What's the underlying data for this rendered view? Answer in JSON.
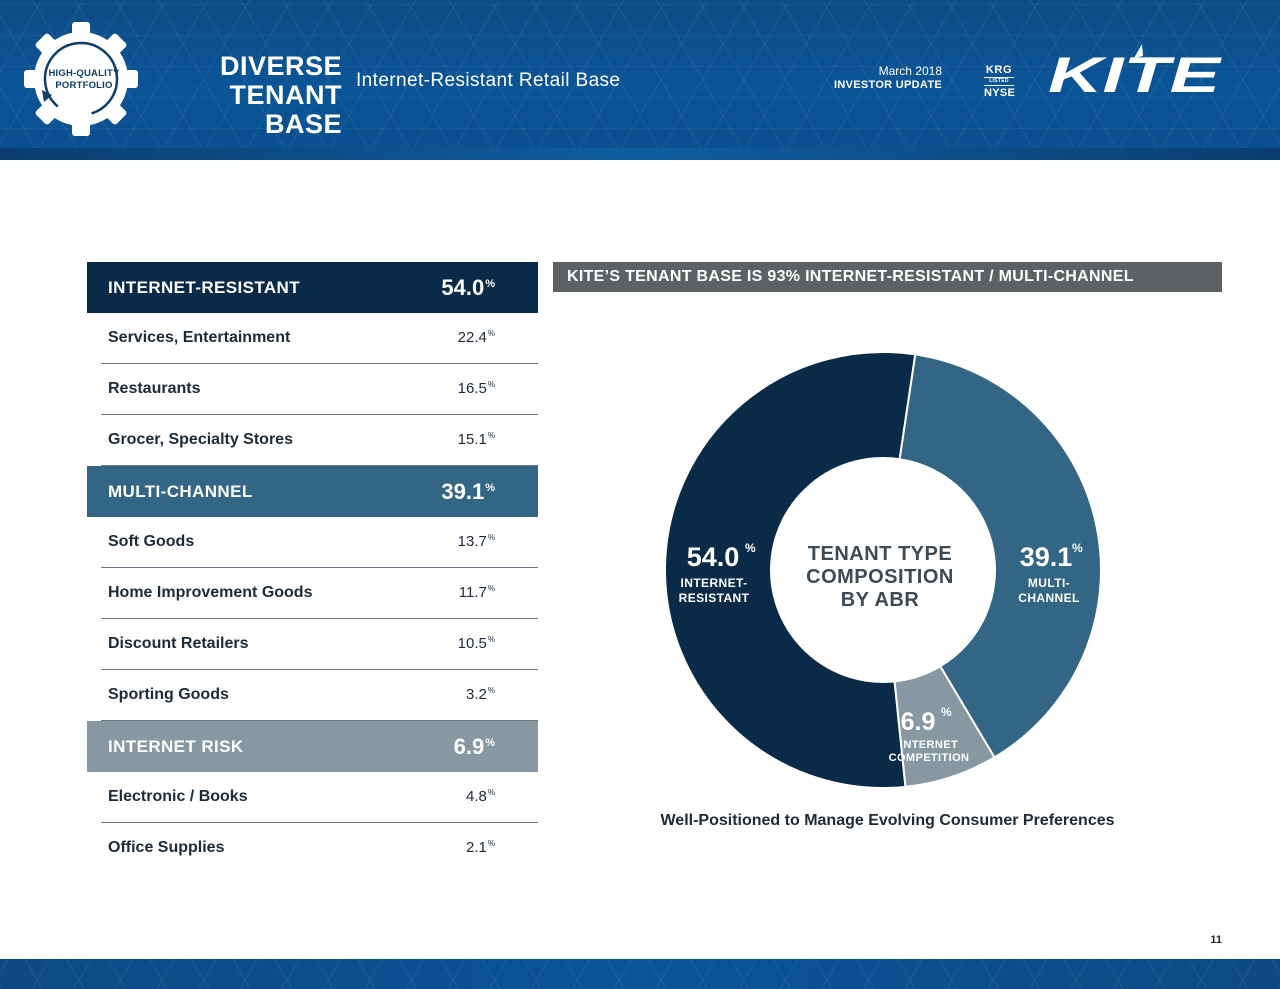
{
  "colors": {
    "internet_resistant": "#0a2b47",
    "multi_channel": "#336584",
    "internet_risk": "#8798a3",
    "banner": "#5c6163",
    "header_blue": "#0a5497"
  },
  "header": {
    "badge_line1": "HIGH-QUALITY",
    "badge_line2": "PORTFOLIO",
    "title_line1": "DIVERSE",
    "title_line2": "TENANT BASE",
    "subtitle": "Internet-Resistant Retail Base",
    "date": "March 2018",
    "update": "INVESTOR UPDATE",
    "ticker_symbol": "KRG",
    "ticker_listed": "LISTED",
    "ticker_exchange": "NYSE",
    "logo_text": "KITE"
  },
  "table": {
    "internet_resistant": {
      "label": "INTERNET-RESISTANT",
      "value": "54.0",
      "items": [
        {
          "label": "Services, Entertainment",
          "value": "22.4"
        },
        {
          "label": "Restaurants",
          "value": "16.5"
        },
        {
          "label": "Grocer, Specialty Stores",
          "value": "15.1"
        }
      ]
    },
    "multi_channel": {
      "label": "MULTI-CHANNEL",
      "value": "39.1",
      "items": [
        {
          "label": "Soft Goods",
          "value": "13.7"
        },
        {
          "label": "Home Improvement Goods",
          "value": "11.7"
        },
        {
          "label": "Discount Retailers",
          "value": "10.5"
        },
        {
          "label": "Sporting Goods",
          "value": "3.2"
        }
      ]
    },
    "internet_risk": {
      "label": "INTERNET RISK",
      "value": "6.9",
      "items": [
        {
          "label": "Electronic / Books",
          "value": "4.8"
        },
        {
          "label": "Office Supplies",
          "value": "2.1"
        }
      ]
    },
    "pct_symbol": "%"
  },
  "chart_data": {
    "type": "pie",
    "title": "KITE’S TENANT BASE IS 93% INTERNET-RESISTANT / MULTI-CHANNEL",
    "center_label_line1": "TENANT TYPE",
    "center_label_line2": "COMPOSITION",
    "center_label_line3": "BY ABR",
    "slices": [
      {
        "value": 54.0,
        "value_label": "54.0",
        "label_line1": "INTERNET-",
        "label_line2": "RESISTANT"
      },
      {
        "value": 39.1,
        "value_label": "39.1",
        "label_line1": "MULTI-",
        "label_line2": "CHANNEL"
      },
      {
        "value": 6.9,
        "value_label": "6.9",
        "label_line1": "INTERNET",
        "label_line2": "COMPETITION"
      }
    ],
    "caption": "Well-Positioned to Manage Evolving Consumer Preferences"
  },
  "page_number": "11"
}
